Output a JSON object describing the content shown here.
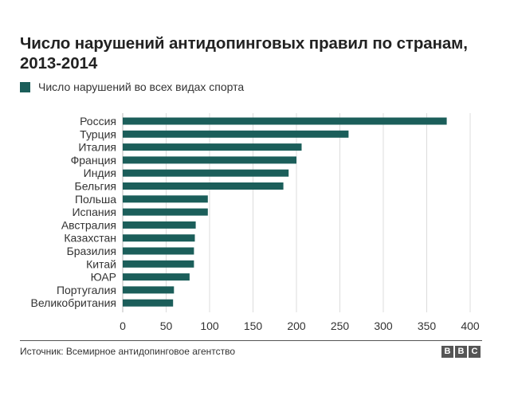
{
  "header": {
    "title": "Число нарушений антидопинговых правил по странам, 2013-2014"
  },
  "legend": {
    "label": "Число нарушений во всех видах спорта",
    "color": "#1b5e5a"
  },
  "footer": {
    "source": "Источник: Всемирное антидопинговое агентство",
    "logo_letters": [
      "B",
      "B",
      "C"
    ]
  },
  "chart_data": {
    "type": "bar",
    "orientation": "horizontal",
    "categories": [
      "Россия",
      "Турция",
      "Италия",
      "Франция",
      "Индия",
      "Бельгия",
      "Польша",
      "Испания",
      "Австралия",
      "Казахстан",
      "Бразилия",
      "Китай",
      "ЮАР",
      "Португалия",
      "Великобритания"
    ],
    "series": [
      {
        "name": "Число нарушений во всех видах спорта",
        "values": [
          373,
          260,
          206,
          200,
          191,
          185,
          98,
          98,
          84,
          83,
          82,
          82,
          77,
          59,
          58
        ],
        "color": "#1b5e5a"
      }
    ],
    "xticks": [
      "0",
      "50",
      "100",
      "150",
      "200",
      "250",
      "300",
      "350",
      "400"
    ],
    "xlim": [
      0,
      400
    ],
    "grid": "vertical"
  }
}
